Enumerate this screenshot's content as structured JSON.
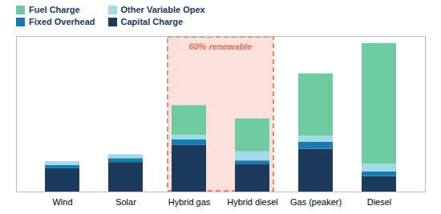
{
  "chart_data": {
    "type": "bar",
    "stacked": true,
    "categories": [
      "Wind",
      "Solar",
      "Hybrid gas",
      "Hybrid diesel",
      "Gas (peaker)",
      "Diesel"
    ],
    "series": [
      {
        "name": "Capital Charge",
        "color": "#1b3a5c",
        "values": [
          30,
          38,
          60,
          35,
          55,
          20
        ]
      },
      {
        "name": "Fixed Overhead",
        "color": "#1a7ab0",
        "values": [
          4,
          5,
          7,
          5,
          9,
          6
        ]
      },
      {
        "name": "Other Variable Opex",
        "color": "#a0dbe8",
        "values": [
          5,
          5,
          6,
          12,
          8,
          10
        ]
      },
      {
        "name": "Fuel Charge",
        "color": "#6ecba0",
        "values": [
          0,
          0,
          38,
          42,
          80,
          155
        ]
      }
    ],
    "ylim": [
      0,
      200
    ],
    "tick_labels": "x",
    "legend": "upper left",
    "annotations": [
      {
        "text": "60% renewable",
        "color": "#e8735a",
        "categories": [
          "Hybrid gas",
          "Hybrid diesel"
        ],
        "highlight_color": "#f4856a"
      }
    ]
  }
}
